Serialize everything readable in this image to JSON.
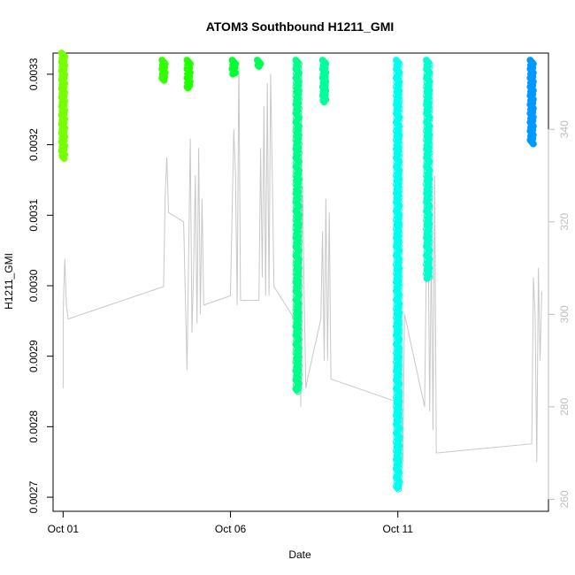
{
  "chart_data": {
    "type": "scatter",
    "title": "ATOM3 Southbound H1211_GMI",
    "xlabel": "Date",
    "ylabel": "H1211_GMI",
    "xlim": [
      -0.3,
      14.5
    ],
    "ylim": [
      0.00268,
      0.00333
    ],
    "y2lim": [
      257.4,
      356.5
    ],
    "x_ticks": [
      {
        "label": "Oct 01",
        "value": 0
      },
      {
        "label": "Oct 06",
        "value": 5
      },
      {
        "label": "Oct 11",
        "value": 10
      }
    ],
    "y_ticks": [
      0.0027,
      0.0028,
      0.0029,
      0.003,
      0.0031,
      0.0032,
      0.0033
    ],
    "y2_ticks": [
      260,
      280,
      300,
      320,
      340
    ],
    "y_tick_labels": [
      "0.0027",
      "0.0028",
      "0.0029",
      "0.0030",
      "0.0031",
      "0.0032",
      "0.0033"
    ],
    "y2_tick_labels": [
      "260",
      "280",
      "300",
      "320",
      "340"
    ],
    "grid": false,
    "series": [
      {
        "x": 0.0,
        "ymin": 0.00318,
        "ymax": 0.00333,
        "color": "#77ff00",
        "marker": "filled"
      },
      {
        "x": 3.0,
        "ymin": 0.00329,
        "ymax": 0.00332,
        "color": "#33ff00",
        "marker": "filled"
      },
      {
        "x": 3.75,
        "ymin": 0.00328,
        "ymax": 0.00332,
        "color": "#22ff00",
        "marker": "filled"
      },
      {
        "x": 5.1,
        "ymin": 0.0033,
        "ymax": 0.00332,
        "color": "#00ff33",
        "marker": "filled"
      },
      {
        "x": 5.85,
        "ymin": 0.00331,
        "ymax": 0.00332,
        "color": "#00ff55",
        "marker": "filled"
      },
      {
        "x": 7.0,
        "ymin": 0.00285,
        "ymax": 0.00332,
        "color": "#00ff88",
        "marker": "mixed"
      },
      {
        "x": 7.8,
        "ymin": 0.00326,
        "ymax": 0.00332,
        "color": "#00ff99",
        "marker": "filled"
      },
      {
        "x": 10.0,
        "ymin": 0.00271,
        "ymax": 0.00332,
        "color": "#00ffee",
        "marker": "mixed"
      },
      {
        "x": 10.9,
        "ymin": 0.00301,
        "ymax": 0.00332,
        "color": "#00ffcc",
        "marker": "mixed"
      },
      {
        "x": 14.0,
        "ymin": 0.0032,
        "ymax": 0.00332,
        "color": "#0099ff",
        "marker": "filled"
      }
    ],
    "secondary_line": {
      "color": "#c8c8c8",
      "points": [
        [
          0.0,
          284
        ],
        [
          0.0,
          300
        ],
        [
          0.05,
          312
        ],
        [
          0.1,
          302
        ],
        [
          0.15,
          299
        ],
        [
          3.0,
          306
        ],
        [
          3.05,
          326
        ],
        [
          3.1,
          334
        ],
        [
          3.15,
          322
        ],
        [
          3.6,
          320
        ],
        [
          3.7,
          288
        ],
        [
          3.75,
          312
        ],
        [
          3.8,
          338
        ],
        [
          3.85,
          296
        ],
        [
          3.9,
          310
        ],
        [
          3.95,
          330
        ],
        [
          4.0,
          298
        ],
        [
          4.05,
          336
        ],
        [
          4.1,
          300
        ],
        [
          4.15,
          325
        ],
        [
          4.2,
          302
        ],
        [
          5.0,
          304
        ],
        [
          5.05,
          322
        ],
        [
          5.1,
          340
        ],
        [
          5.15,
          330
        ],
        [
          5.2,
          302
        ],
        [
          5.25,
          355
        ],
        [
          5.3,
          303
        ],
        [
          5.85,
          303
        ],
        [
          5.9,
          336
        ],
        [
          5.95,
          308
        ],
        [
          6.0,
          345
        ],
        [
          6.05,
          304
        ],
        [
          6.1,
          350
        ],
        [
          6.15,
          304
        ],
        [
          6.2,
          352
        ],
        [
          6.25,
          330
        ],
        [
          6.3,
          306
        ],
        [
          7.0,
          298
        ],
        [
          7.05,
          318
        ],
        [
          7.1,
          280
        ],
        [
          7.15,
          330
        ],
        [
          7.2,
          305
        ],
        [
          7.25,
          284
        ],
        [
          7.3,
          286
        ],
        [
          7.7,
          299
        ],
        [
          7.75,
          318
        ],
        [
          7.8,
          290
        ],
        [
          7.85,
          325
        ],
        [
          7.9,
          290
        ],
        [
          7.95,
          322
        ],
        [
          8.0,
          286
        ],
        [
          10.0,
          281
        ],
        [
          10.05,
          312
        ],
        [
          10.1,
          298
        ],
        [
          10.15,
          268
        ],
        [
          10.2,
          300
        ],
        [
          10.8,
          280
        ],
        [
          10.85,
          310
        ],
        [
          10.9,
          322
        ],
        [
          10.95,
          279
        ],
        [
          11.0,
          315
        ],
        [
          11.05,
          275
        ],
        [
          11.1,
          330
        ],
        [
          11.15,
          270
        ],
        [
          14.0,
          272
        ],
        [
          14.05,
          308
        ],
        [
          14.1,
          300
        ],
        [
          14.15,
          268
        ],
        [
          14.2,
          310
        ],
        [
          14.25,
          290
        ],
        [
          14.3,
          305
        ]
      ]
    }
  }
}
